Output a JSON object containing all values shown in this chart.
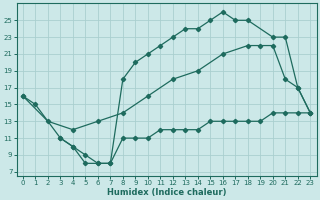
{
  "xlabel": "Humidex (Indice chaleur)",
  "bg_color": "#cce8e8",
  "line_color": "#1e6b5e",
  "grid_color": "#aacfcf",
  "xlim": [
    -0.5,
    23.5
  ],
  "ylim": [
    6.5,
    27
  ],
  "xticks": [
    0,
    1,
    2,
    3,
    4,
    5,
    6,
    7,
    8,
    9,
    10,
    11,
    12,
    13,
    14,
    15,
    16,
    17,
    18,
    19,
    20,
    21,
    22,
    23
  ],
  "yticks": [
    7,
    9,
    11,
    13,
    15,
    17,
    19,
    21,
    23,
    25
  ],
  "line1_x": [
    0,
    1,
    3,
    4,
    5,
    6,
    7,
    8,
    9,
    10,
    11,
    12,
    13,
    14,
    15,
    16,
    17,
    18,
    20,
    21,
    22,
    23
  ],
  "line1_y": [
    16,
    15,
    11,
    10,
    8,
    8,
    8,
    18,
    20,
    21,
    22,
    23,
    24,
    24,
    25,
    26,
    25,
    25,
    23,
    23,
    17,
    14
  ],
  "line2_x": [
    0,
    2,
    4,
    6,
    8,
    10,
    12,
    14,
    16,
    18,
    19,
    20,
    21,
    22,
    23
  ],
  "line2_y": [
    16,
    13,
    12,
    13,
    14,
    16,
    18,
    19,
    21,
    22,
    22,
    22,
    18,
    17,
    14
  ],
  "line3_x": [
    3,
    4,
    5,
    6,
    7,
    8,
    9,
    10,
    11,
    12,
    13,
    14,
    15,
    16,
    17,
    18,
    19,
    20,
    21,
    22,
    23
  ],
  "line3_y": [
    11,
    10,
    9,
    8,
    8,
    11,
    11,
    11,
    12,
    12,
    12,
    12,
    13,
    13,
    13,
    13,
    13,
    14,
    14,
    14,
    14
  ]
}
